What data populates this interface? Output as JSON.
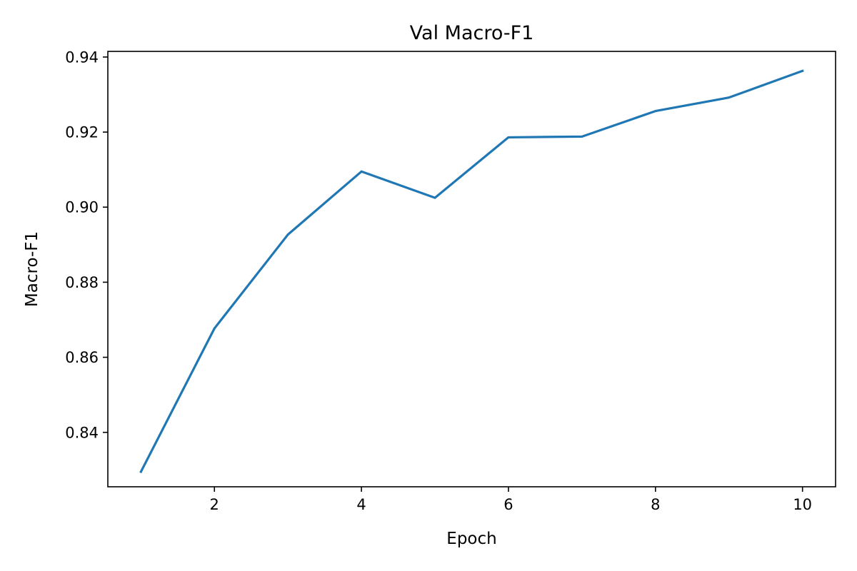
{
  "chart_data": {
    "type": "line",
    "title": "Val Macro-F1",
    "xlabel": "Epoch",
    "ylabel": "Macro-F1",
    "xlim": [
      0.55,
      10.45
    ],
    "ylim": [
      0.8255,
      0.9415
    ],
    "xticks": [
      2,
      4,
      6,
      8,
      10
    ],
    "yticks": [
      0.84,
      0.86,
      0.88,
      0.9,
      0.92,
      0.94
    ],
    "ytick_labels": [
      "0.84",
      "0.86",
      "0.88",
      "0.90",
      "0.92",
      "0.94"
    ],
    "grid": false,
    "series": [
      {
        "color": "#1f77b4",
        "x": [
          1,
          2,
          3,
          4,
          5,
          6,
          7,
          8,
          9,
          10
        ],
        "y": [
          0.8295,
          0.8677,
          0.8927,
          0.9095,
          0.9025,
          0.9186,
          0.9188,
          0.9256,
          0.9292,
          0.9363
        ]
      }
    ]
  }
}
